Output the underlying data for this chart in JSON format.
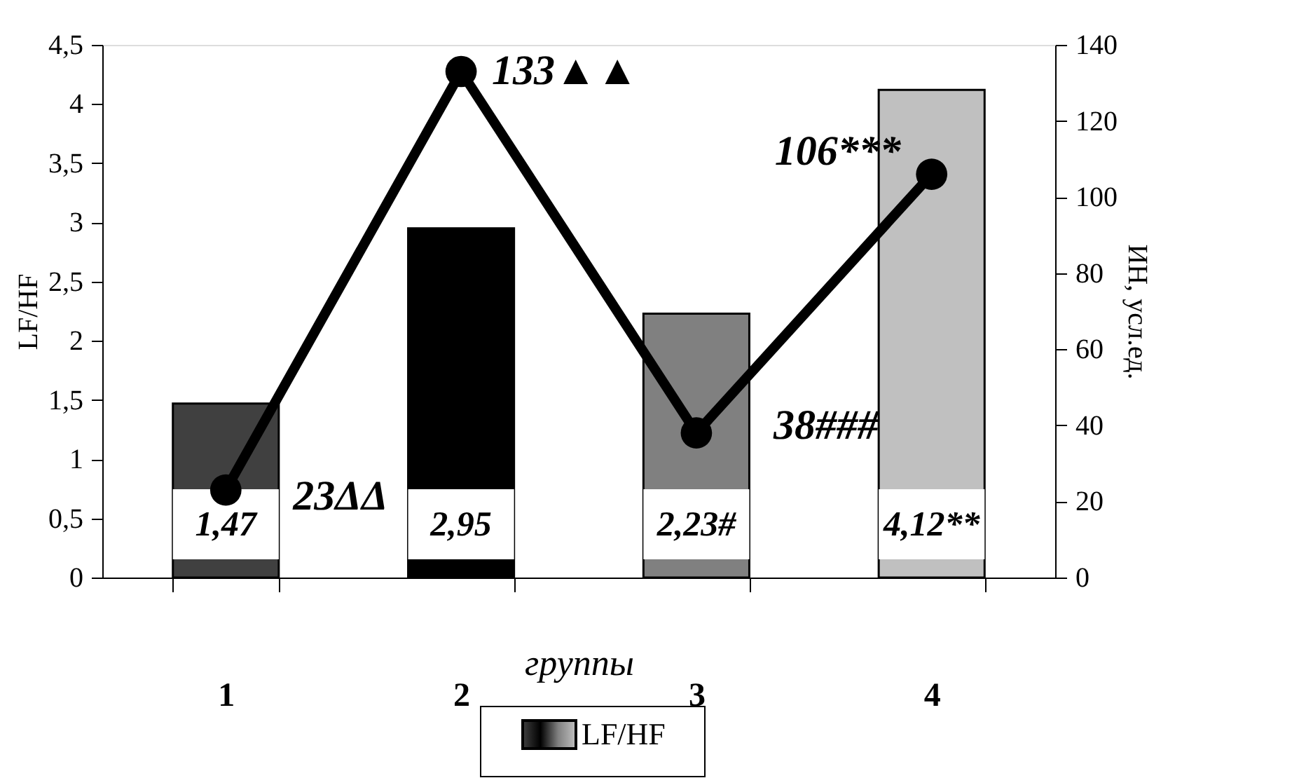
{
  "chart_data": {
    "type": "bar",
    "xlabel": "группы",
    "ylabel": "LF/HF",
    "y2label": "ИН, усл.ед.",
    "categories": [
      "1",
      "2",
      "3",
      "4"
    ],
    "series": [
      {
        "name": "LF/HF",
        "colors": [
          "#404040",
          "#000000",
          "#808080",
          "#c0c0c0"
        ],
        "values": [
          1.47,
          2.95,
          2.23,
          4.12
        ],
        "value_labels": [
          "1,47",
          "2,95",
          "2,23#",
          "4,12**"
        ]
      },
      {
        "type": "line",
        "axis": "y2",
        "color": "#000000",
        "marker": "circle",
        "values": [
          23,
          133,
          38,
          106
        ],
        "value_labels": [
          "23ΔΔ",
          "133▲▲",
          "38###",
          "106***"
        ]
      }
    ],
    "ylim": [
      0,
      4.5
    ],
    "yticks": [
      0,
      {
        "value": 0.5,
        "label": "0,5"
      },
      1,
      {
        "value": 1.5,
        "label": "1,5"
      },
      2,
      {
        "value": 2.5,
        "label": "2,5"
      },
      3,
      {
        "value": 3.5,
        "label": "3,5"
      },
      4,
      {
        "value": 4.5,
        "label": "4,5"
      }
    ],
    "y2lim": [
      0,
      140
    ],
    "y2ticks": [
      0,
      20,
      40,
      60,
      80,
      100,
      120,
      140
    ],
    "grid": false,
    "legend": "bottom"
  }
}
